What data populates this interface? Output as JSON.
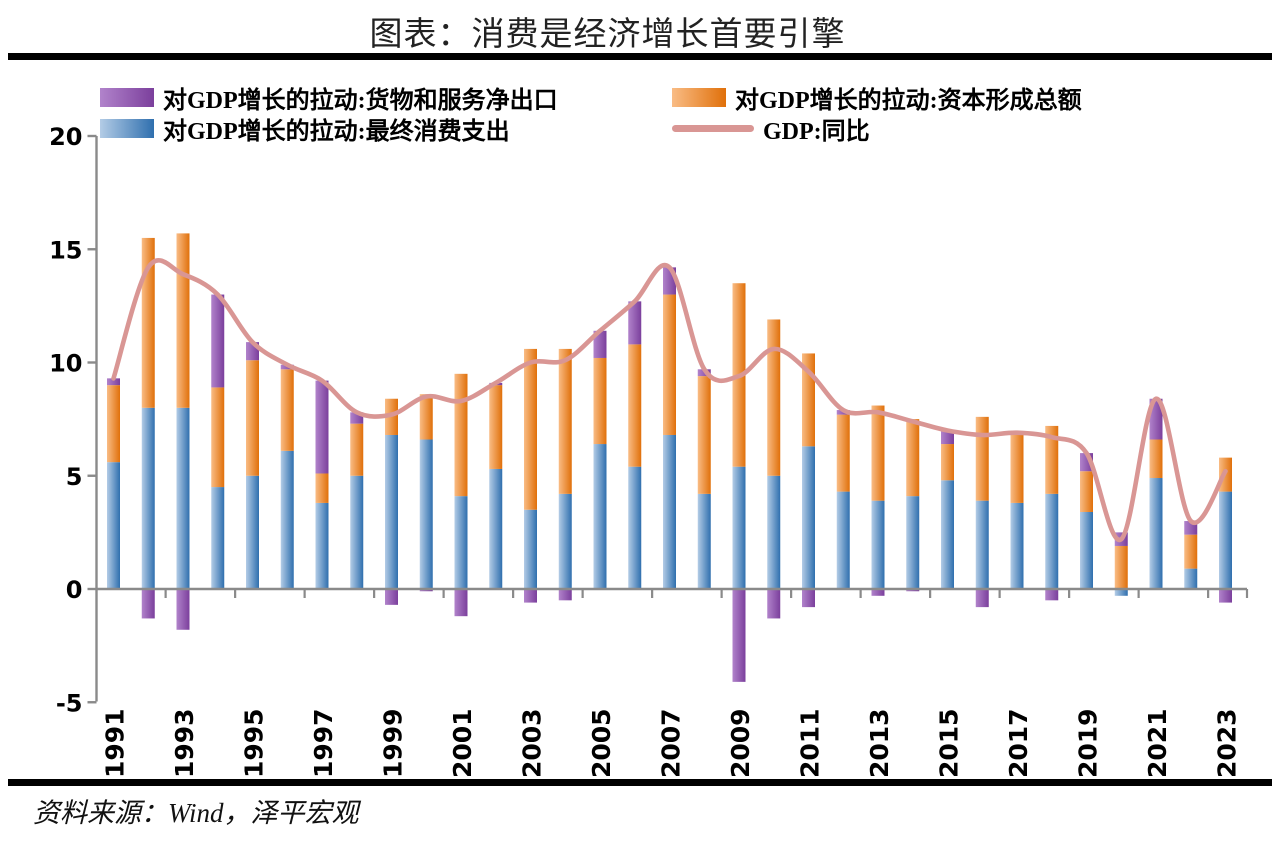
{
  "title": "图表：消费是经济增长首要引擎",
  "source_note": "资料来源：Wind，泽平宏观",
  "colors": {
    "axis": "#8a8a8a",
    "rule": "#000000",
    "gdp_line": "#d99694"
  },
  "legend": {
    "net_exports": "对GDP增长的拉动:货物和服务净出口",
    "capital": "对GDP增长的拉动:资本形成总额",
    "consumption": "对GDP增长的拉动:最终消费支出",
    "gdp": "GDP:同比"
  },
  "chart_data": {
    "type": "bar",
    "stacked": true,
    "grid": false,
    "legend_position": "top",
    "title": "图表：消费是经济增长首要引擎",
    "ylim": [
      -5,
      20
    ],
    "yticks": [
      -5,
      0,
      5,
      10,
      15,
      20
    ],
    "categories": [
      "1991",
      "1992",
      "1993",
      "1994",
      "1995",
      "1996",
      "1997",
      "1998",
      "1999",
      "2000",
      "2001",
      "2002",
      "2003",
      "2004",
      "2005",
      "2006",
      "2007",
      "2008",
      "2009",
      "2010",
      "2011",
      "2012",
      "2013",
      "2014",
      "2015",
      "2016",
      "2017",
      "2018",
      "2019",
      "2020",
      "2021",
      "2022",
      "2023"
    ],
    "xtick_labels": [
      "1991",
      "1993",
      "1995",
      "1997",
      "1999",
      "2001",
      "2003",
      "2005",
      "2007",
      "2009",
      "2011",
      "2013",
      "2015",
      "2017",
      "2019",
      "2021",
      "2023"
    ],
    "series": [
      {
        "name": "对GDP增长的拉动:最终消费支出",
        "role": "consumption",
        "color_light": "#b3cce6",
        "color_dark": "#2f6fae",
        "values": [
          5.6,
          8.0,
          8.0,
          4.5,
          5.0,
          6.1,
          3.8,
          5.0,
          6.8,
          6.6,
          4.1,
          5.3,
          3.5,
          4.2,
          6.4,
          5.4,
          6.8,
          4.2,
          5.4,
          5.0,
          6.3,
          4.3,
          3.9,
          4.1,
          4.8,
          3.9,
          3.8,
          4.2,
          3.4,
          -0.3,
          4.9,
          0.9,
          4.3
        ]
      },
      {
        "name": "对GDP增长的拉动:资本形成总额",
        "role": "capital",
        "color_light": "#f9bc85",
        "color_dark": "#e0700a",
        "values": [
          3.4,
          7.5,
          7.7,
          4.4,
          5.1,
          3.6,
          1.3,
          2.3,
          1.6,
          2.0,
          5.4,
          3.7,
          7.1,
          6.4,
          3.8,
          5.4,
          6.2,
          5.2,
          8.1,
          6.9,
          4.1,
          3.4,
          4.2,
          3.4,
          1.6,
          3.7,
          3.0,
          3.0,
          1.8,
          1.9,
          1.7,
          1.5,
          1.5
        ]
      },
      {
        "name": "对GDP增长的拉动:货物和服务净出口",
        "role": "net_exports",
        "color_light": "#b183cb",
        "color_dark": "#7b3f9c",
        "values": [
          0.3,
          -1.3,
          -1.8,
          4.1,
          0.8,
          0.2,
          4.1,
          0.5,
          -0.7,
          -0.1,
          -1.2,
          0.1,
          -0.6,
          -0.5,
          1.2,
          1.9,
          1.2,
          0.3,
          -4.1,
          -1.3,
          -0.8,
          0.2,
          -0.3,
          -0.1,
          0.6,
          -0.8,
          0.1,
          -0.5,
          0.8,
          0.6,
          1.8,
          0.6,
          -0.6
        ]
      }
    ],
    "line_series": {
      "name": "GDP:同比",
      "color": "#d99694",
      "values": [
        9.3,
        14.2,
        13.9,
        13.0,
        10.9,
        9.9,
        9.2,
        7.8,
        7.7,
        8.5,
        8.3,
        9.1,
        10.0,
        10.1,
        11.4,
        12.7,
        14.2,
        9.7,
        9.4,
        10.6,
        9.6,
        7.9,
        7.8,
        7.4,
        7.0,
        6.8,
        6.9,
        6.7,
        6.0,
        2.2,
        8.4,
        3.0,
        5.2
      ]
    }
  }
}
